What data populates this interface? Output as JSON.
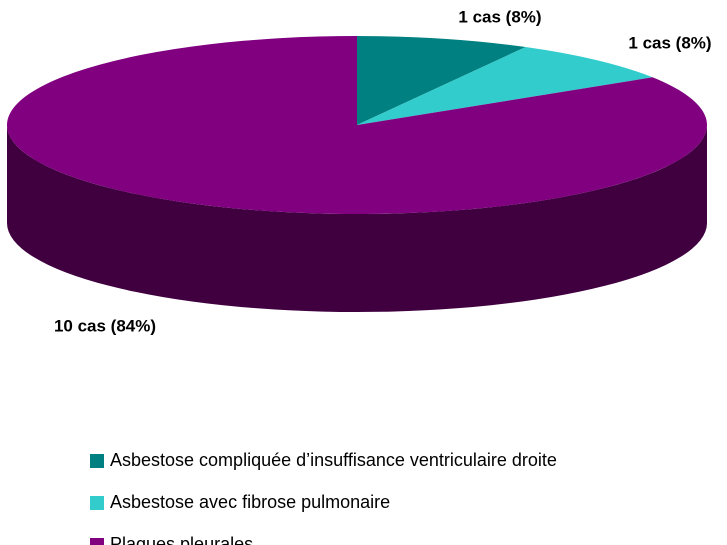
{
  "chart_data": {
    "type": "pie",
    "categories": [
      "Asbestose compliquée d’insuffisance ventriculaire droite",
      "Asbestose avec fibrose pulmonaire",
      "Plaques pleurales"
    ],
    "values": [
      8,
      8,
      84
    ],
    "value_labels": [
      "1 cas (8%)",
      "1 cas (8%)",
      "10 cas (84%)"
    ],
    "colors": [
      "#008080",
      "#33cccc",
      "#800080"
    ],
    "legend": "bottom-left"
  }
}
